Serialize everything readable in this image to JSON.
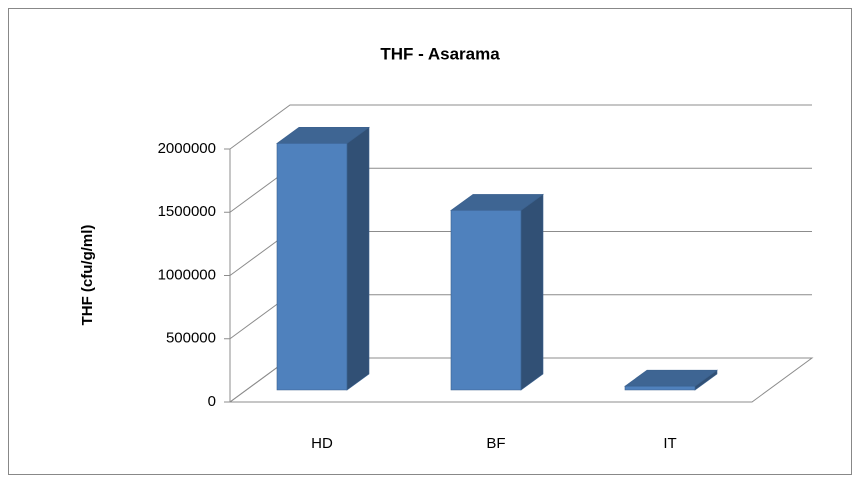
{
  "chart_data": {
    "type": "bar3d",
    "title": "THF - Asarama",
    "ylabel": "THF (cfu/g/ml)",
    "categories": [
      "HD",
      "BF",
      "IT"
    ],
    "values": [
      1950000,
      1420000,
      30000
    ],
    "color": "#4f81bd",
    "ylim": [
      0,
      2000000
    ],
    "yticks": [
      0,
      500000,
      1000000,
      1500000,
      2000000
    ],
    "grid": true
  }
}
